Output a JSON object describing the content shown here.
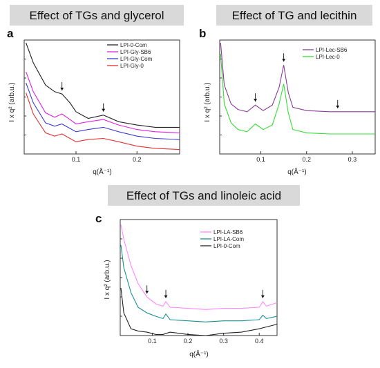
{
  "chart_data": [
    {
      "panel": "a",
      "type": "line",
      "title": "Effect of TGs and glycerol",
      "xlabel": "q(Å⁻¹)",
      "ylabel": "I x q² (arb.u.)",
      "xlim": [
        0.015,
        0.27
      ],
      "ylim": [
        0,
        1
      ],
      "xticks": [
        0.1,
        0.2
      ],
      "legend": "top-right",
      "arrows_at_x": [
        0.077,
        0.145
      ],
      "series": [
        {
          "name": "LPI-0-Com",
          "color": "#222222",
          "x": [
            0.018,
            0.03,
            0.05,
            0.065,
            0.077,
            0.09,
            0.1,
            0.12,
            0.145,
            0.17,
            0.2,
            0.23,
            0.27
          ],
          "y": [
            1.0,
            0.82,
            0.62,
            0.56,
            0.54,
            0.46,
            0.38,
            0.32,
            0.35,
            0.29,
            0.26,
            0.24,
            0.24
          ]
        },
        {
          "name": "LPI-Gly-SB6",
          "color": "#e020e0",
          "x": [
            0.018,
            0.03,
            0.05,
            0.065,
            0.077,
            0.09,
            0.1,
            0.12,
            0.145,
            0.17,
            0.2,
            0.23,
            0.27
          ],
          "y": [
            0.74,
            0.56,
            0.37,
            0.33,
            0.36,
            0.31,
            0.27,
            0.29,
            0.31,
            0.26,
            0.22,
            0.2,
            0.19
          ]
        },
        {
          "name": "LPI-Gly-Com",
          "color": "#3a3ad0",
          "x": [
            0.018,
            0.03,
            0.05,
            0.065,
            0.077,
            0.09,
            0.1,
            0.12,
            0.145,
            0.17,
            0.2,
            0.23,
            0.27
          ],
          "y": [
            0.64,
            0.46,
            0.28,
            0.25,
            0.27,
            0.23,
            0.2,
            0.22,
            0.24,
            0.2,
            0.16,
            0.14,
            0.13
          ]
        },
        {
          "name": "LPI-Gly-0",
          "color": "#e03030",
          "x": [
            0.018,
            0.03,
            0.05,
            0.065,
            0.077,
            0.09,
            0.1,
            0.12,
            0.145,
            0.17,
            0.2,
            0.23,
            0.27
          ],
          "y": [
            0.55,
            0.36,
            0.19,
            0.16,
            0.18,
            0.14,
            0.11,
            0.13,
            0.14,
            0.11,
            0.07,
            0.05,
            0.04
          ]
        }
      ]
    },
    {
      "panel": "b",
      "type": "line",
      "title": "Effect of TG and lecithin",
      "xlabel": "q(Å⁻¹)",
      "ylabel": "I x q² (arb.u.)",
      "xlim": [
        0.01,
        0.35
      ],
      "ylim": [
        0,
        1
      ],
      "xticks": [
        0.1,
        0.2,
        0.3
      ],
      "legend": "top-right",
      "arrows_at_x": [
        0.088,
        0.15,
        0.268
      ],
      "series": [
        {
          "name": "LPI-Lec-SB6",
          "color": "#8a3a9a",
          "x": [
            0.012,
            0.02,
            0.035,
            0.05,
            0.07,
            0.088,
            0.105,
            0.125,
            0.14,
            0.15,
            0.16,
            0.17,
            0.2,
            0.25,
            0.3,
            0.35
          ],
          "y": [
            1.0,
            0.62,
            0.45,
            0.4,
            0.38,
            0.44,
            0.39,
            0.44,
            0.6,
            0.8,
            0.55,
            0.42,
            0.39,
            0.38,
            0.38,
            0.38
          ]
        },
        {
          "name": "LPI-Lec-0",
          "color": "#33dd33",
          "x": [
            0.012,
            0.02,
            0.035,
            0.05,
            0.07,
            0.088,
            0.105,
            0.125,
            0.14,
            0.15,
            0.16,
            0.17,
            0.2,
            0.25,
            0.3,
            0.35
          ],
          "y": [
            0.9,
            0.45,
            0.28,
            0.22,
            0.2,
            0.27,
            0.22,
            0.26,
            0.45,
            0.63,
            0.37,
            0.22,
            0.19,
            0.18,
            0.18,
            0.18
          ]
        }
      ]
    },
    {
      "panel": "c",
      "type": "line",
      "title": "Effect of TGs and linoleic acid",
      "xlabel": "q(Å⁻¹)",
      "ylabel": "I x q² (arb.u.)",
      "xlim": [
        0.01,
        0.45
      ],
      "ylim": [
        0,
        1
      ],
      "xticks": [
        0.1,
        0.2,
        0.3,
        0.4
      ],
      "legend": "top-right",
      "arrows_at_x": [
        0.085,
        0.138,
        0.41
      ],
      "series": [
        {
          "name": "LPI-LA-SB6",
          "color": "#ff88ff",
          "x": [
            0.012,
            0.02,
            0.04,
            0.06,
            0.085,
            0.11,
            0.13,
            0.138,
            0.15,
            0.2,
            0.25,
            0.3,
            0.35,
            0.4,
            0.41,
            0.42,
            0.45
          ],
          "y": [
            0.98,
            0.85,
            0.62,
            0.46,
            0.34,
            0.28,
            0.26,
            0.3,
            0.25,
            0.24,
            0.23,
            0.24,
            0.24,
            0.25,
            0.3,
            0.26,
            0.29
          ]
        },
        {
          "name": "LPI-LA-Com",
          "color": "#1a8f8f",
          "x": [
            0.012,
            0.02,
            0.04,
            0.06,
            0.085,
            0.11,
            0.13,
            0.138,
            0.15,
            0.2,
            0.25,
            0.3,
            0.35,
            0.4,
            0.41,
            0.42,
            0.45
          ],
          "y": [
            0.8,
            0.6,
            0.38,
            0.25,
            0.2,
            0.17,
            0.15,
            0.19,
            0.14,
            0.13,
            0.12,
            0.13,
            0.13,
            0.14,
            0.18,
            0.15,
            0.17
          ]
        },
        {
          "name": "LPI-0-Com",
          "color": "#222222",
          "x": [
            0.012,
            0.02,
            0.04,
            0.06,
            0.085,
            0.11,
            0.13,
            0.15,
            0.2,
            0.25,
            0.3,
            0.35,
            0.4,
            0.45
          ],
          "y": [
            0.42,
            0.2,
            0.06,
            0.04,
            0.03,
            0.01,
            0.01,
            0.03,
            0.01,
            0.0,
            0.02,
            0.03,
            0.06,
            0.1
          ]
        }
      ]
    }
  ]
}
